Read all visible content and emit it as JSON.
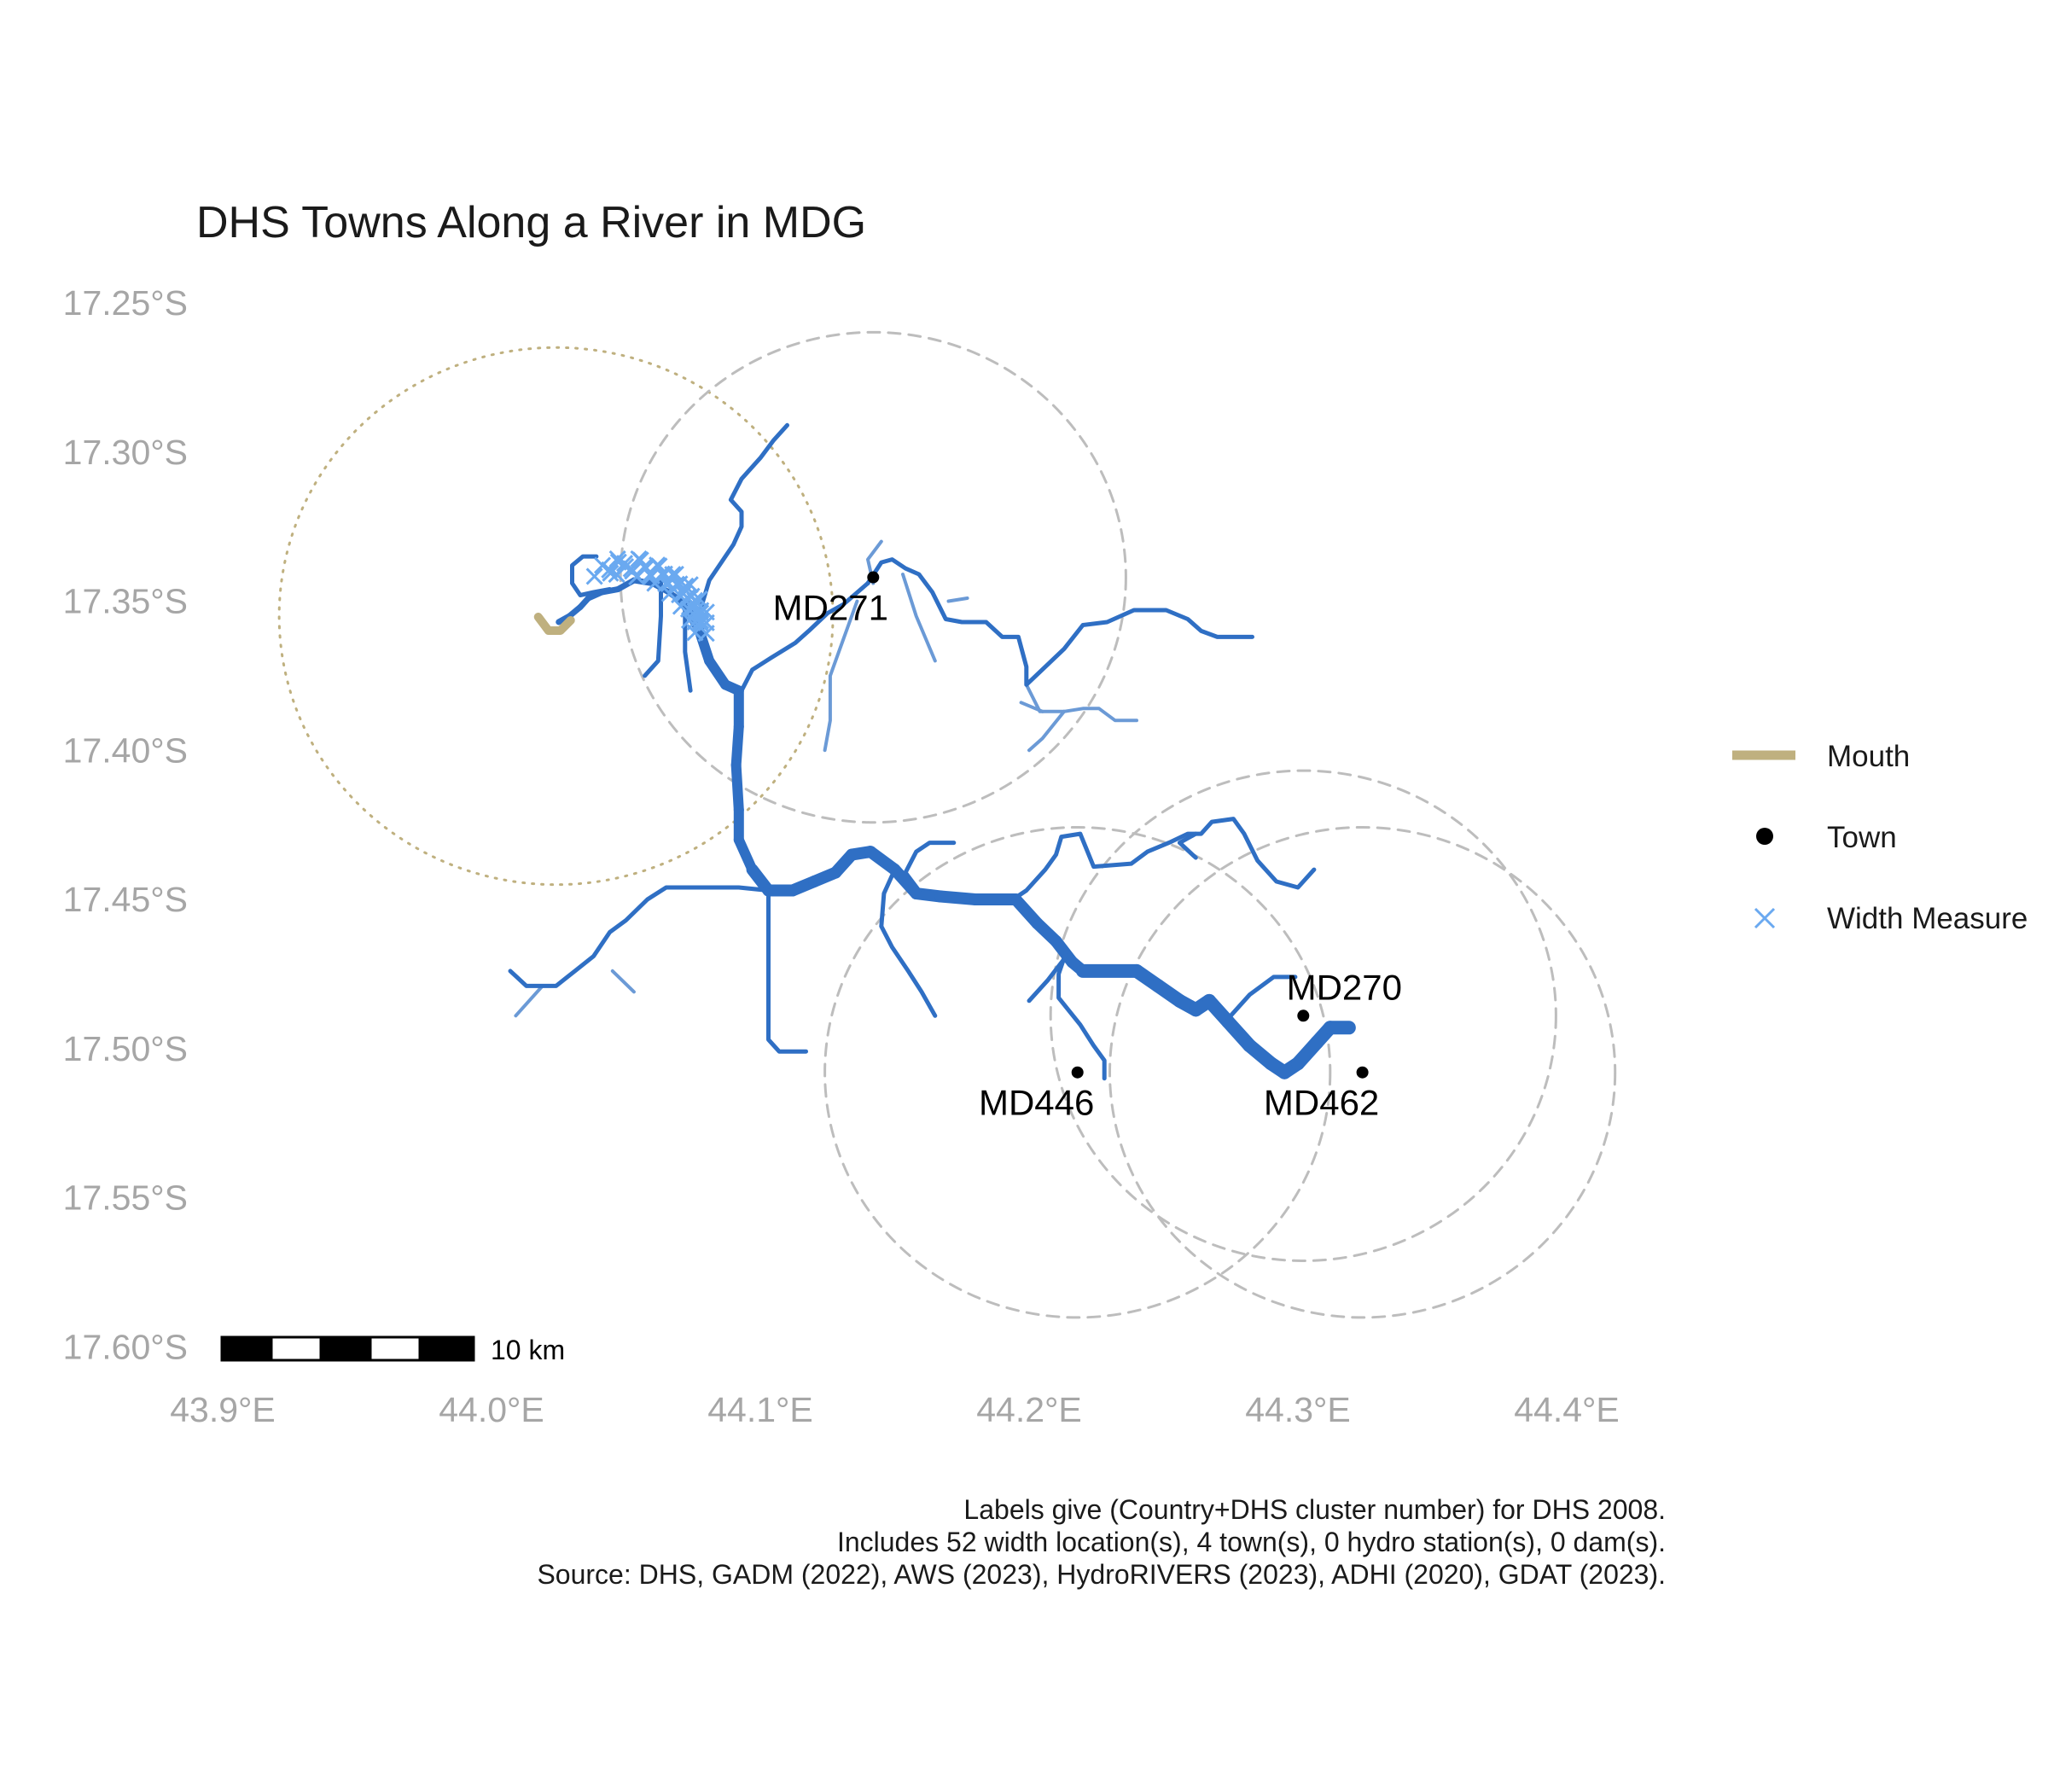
{
  "title": "DHS Towns Along a River in MDG",
  "axes": {
    "lat_labels": [
      "17.25°S",
      "17.30°S",
      "17.35°S",
      "17.40°S",
      "17.45°S",
      "17.50°S",
      "17.55°S",
      "17.60°S"
    ],
    "lon_labels": [
      "43.9°E",
      "44.0°E",
      "44.1°E",
      "44.2°E",
      "44.3°E",
      "44.4°E"
    ],
    "lat_ticks": [
      -17.25,
      -17.3,
      -17.35,
      -17.4,
      -17.45,
      -17.5,
      -17.55,
      -17.6
    ],
    "lon_ticks": [
      43.9,
      44.0,
      44.1,
      44.2,
      44.3,
      44.4
    ]
  },
  "towns": [
    {
      "label": "MD271",
      "lon": 44.142,
      "lat": -17.342
    },
    {
      "label": "MD270",
      "lon": 44.302,
      "lat": -17.489
    },
    {
      "label": "MD446",
      "lon": 44.218,
      "lat": -17.508
    },
    {
      "label": "MD462",
      "lon": 44.324,
      "lat": -17.508
    }
  ],
  "mouth": {
    "lon": 44.025,
    "lat": -17.357
  },
  "buffers": [
    {
      "type": "mouth",
      "lon": 44.024,
      "lat": -17.355,
      "radius_deg": 0.103
    },
    {
      "type": "town",
      "lon": 44.142,
      "lat": -17.342,
      "radius_deg": 0.094
    },
    {
      "type": "town",
      "lon": 44.302,
      "lat": -17.489,
      "radius_deg": 0.094
    },
    {
      "type": "town",
      "lon": 44.218,
      "lat": -17.508,
      "radius_deg": 0.094
    },
    {
      "type": "town",
      "lon": 44.324,
      "lat": -17.508,
      "radius_deg": 0.094
    }
  ],
  "legend": {
    "items": [
      {
        "label": "Mouth"
      },
      {
        "label": "Town"
      },
      {
        "label": "Width Measure"
      }
    ]
  },
  "scalebar": {
    "label": "10 km"
  },
  "caption": [
    "Labels give (Country+DHS cluster number) for DHS 2008.",
    "Includes 52 width location(s), 4 town(s), 0 hydro station(s), 0 dam(s).",
    "Source: DHS, GADM (2022), AWS (2023), HydroRIVERS (2023), ADHI (2020), GDAT (2023)."
  ],
  "colors": {
    "river": "#2f6fc4",
    "tributary_light": "#6b9ad6",
    "mouth": "#bfb07f",
    "width_marker": "#6aa9f0",
    "town": "#000000",
    "buffer": "#bdbdbd",
    "axis_text": "#a6a6a6"
  },
  "rivers": [
    {
      "w": 1,
      "pts": [
        [
          44.025,
          -17.357
        ],
        [
          44.029,
          -17.355
        ],
        [
          44.033,
          -17.352
        ],
        [
          44.036,
          -17.349
        ],
        [
          44.041,
          -17.347
        ],
        [
          44.047,
          -17.346
        ],
        [
          44.053,
          -17.343
        ],
        [
          44.06,
          -17.344
        ],
        [
          44.066,
          -17.347
        ],
        [
          44.072,
          -17.351
        ],
        [
          44.077,
          -17.359
        ],
        [
          44.081,
          -17.37
        ],
        [
          44.087,
          -17.378
        ],
        [
          44.092,
          -17.38
        ],
        [
          44.092,
          -17.392
        ],
        [
          44.091,
          -17.405
        ],
        [
          44.092,
          -17.42
        ],
        [
          44.092,
          -17.43
        ],
        [
          44.097,
          -17.44
        ],
        [
          44.103,
          -17.447
        ],
        [
          44.112,
          -17.447
        ],
        [
          44.12,
          -17.444
        ],
        [
          44.128,
          -17.441
        ],
        [
          44.134,
          -17.435
        ],
        [
          44.141,
          -17.434
        ],
        [
          44.15,
          -17.44
        ],
        [
          44.158,
          -17.448
        ],
        [
          44.167,
          -17.449
        ],
        [
          44.18,
          -17.45
        ],
        [
          44.195,
          -17.45
        ],
        [
          44.203,
          -17.458
        ],
        [
          44.21,
          -17.464
        ],
        [
          44.216,
          -17.471
        ],
        [
          44.22,
          -17.474
        ],
        [
          44.24,
          -17.474
        ],
        [
          44.248,
          -17.479
        ],
        [
          44.256,
          -17.484
        ],
        [
          44.262,
          -17.487
        ],
        [
          44.267,
          -17.484
        ],
        [
          44.274,
          -17.491
        ],
        [
          44.282,
          -17.499
        ],
        [
          44.29,
          -17.505
        ],
        [
          44.295,
          -17.508
        ],
        [
          44.3,
          -17.505
        ],
        [
          44.307,
          -17.498
        ],
        [
          44.312,
          -17.493
        ],
        [
          44.319,
          -17.493
        ]
      ]
    },
    {
      "w": 0,
      "pts": [
        [
          44.14,
          -17.344
        ],
        [
          44.145,
          -17.337
        ],
        [
          44.149,
          -17.336
        ],
        [
          44.154,
          -17.339
        ],
        [
          44.159,
          -17.341
        ],
        [
          44.164,
          -17.347
        ],
        [
          44.169,
          -17.356
        ],
        [
          44.175,
          -17.357
        ],
        [
          44.184,
          -17.357
        ],
        [
          44.19,
          -17.362
        ],
        [
          44.196,
          -17.362
        ],
        [
          44.199,
          -17.372
        ],
        [
          44.199,
          -17.378
        ],
        [
          44.206,
          -17.372
        ],
        [
          44.213,
          -17.366
        ],
        [
          44.22,
          -17.358
        ],
        [
          44.229,
          -17.357
        ],
        [
          44.239,
          -17.353
        ],
        [
          44.251,
          -17.353
        ],
        [
          44.259,
          -17.356
        ],
        [
          44.264,
          -17.36
        ],
        [
          44.27,
          -17.362
        ],
        [
          44.283,
          -17.362
        ]
      ]
    },
    {
      "w": 0,
      "pts": [
        [
          44.14,
          -17.344
        ],
        [
          44.131,
          -17.351
        ],
        [
          44.125,
          -17.354
        ],
        [
          44.118,
          -17.36
        ],
        [
          44.113,
          -17.364
        ],
        [
          44.104,
          -17.369
        ],
        [
          44.097,
          -17.373
        ],
        [
          44.093,
          -17.38
        ]
      ]
    },
    {
      "w": 0,
      "pts": [
        [
          44.078,
          -17.352
        ],
        [
          44.081,
          -17.343
        ],
        [
          44.09,
          -17.331
        ],
        [
          44.093,
          -17.325
        ],
        [
          44.093,
          -17.32
        ],
        [
          44.089,
          -17.316
        ],
        [
          44.093,
          -17.309
        ],
        [
          44.1,
          -17.302
        ],
        [
          44.105,
          -17.296
        ],
        [
          44.11,
          -17.291
        ]
      ]
    },
    {
      "w": 0,
      "pts": [
        [
          44.044,
          -17.346
        ],
        [
          44.038,
          -17.347
        ],
        [
          44.033,
          -17.348
        ],
        [
          44.03,
          -17.344
        ],
        [
          44.03,
          -17.338
        ],
        [
          44.034,
          -17.335
        ],
        [
          44.039,
          -17.335
        ]
      ]
    },
    {
      "w": 0,
      "pts": [
        [
          44.063,
          -17.342
        ],
        [
          44.063,
          -17.355
        ],
        [
          44.062,
          -17.37
        ],
        [
          44.057,
          -17.375
        ]
      ]
    },
    {
      "w": 0,
      "pts": [
        [
          44.072,
          -17.352
        ],
        [
          44.072,
          -17.367
        ],
        [
          44.074,
          -17.38
        ]
      ]
    },
    {
      "w": 0,
      "pts": [
        [
          44.103,
          -17.447
        ],
        [
          44.092,
          -17.446
        ],
        [
          44.08,
          -17.446
        ],
        [
          44.071,
          -17.446
        ],
        [
          44.065,
          -17.446
        ],
        [
          44.058,
          -17.45
        ],
        [
          44.05,
          -17.457
        ],
        [
          44.044,
          -17.461
        ],
        [
          44.038,
          -17.469
        ],
        [
          44.031,
          -17.474
        ],
        [
          44.024,
          -17.479
        ],
        [
          44.013,
          -17.479
        ],
        [
          44.007,
          -17.474
        ]
      ]
    },
    {
      "w": 0,
      "pts": [
        [
          44.103,
          -17.447
        ],
        [
          44.103,
          -17.47
        ],
        [
          44.103,
          -17.49
        ],
        [
          44.103,
          -17.497
        ],
        [
          44.107,
          -17.501
        ],
        [
          44.117,
          -17.501
        ]
      ]
    },
    {
      "w": 0,
      "pts": [
        [
          44.159,
          -17.447
        ],
        [
          44.154,
          -17.441
        ],
        [
          44.158,
          -17.434
        ],
        [
          44.163,
          -17.431
        ],
        [
          44.172,
          -17.431
        ]
      ]
    },
    {
      "w": 0,
      "pts": [
        [
          44.15,
          -17.44
        ],
        [
          44.146,
          -17.448
        ],
        [
          44.145,
          -17.459
        ],
        [
          44.149,
          -17.466
        ],
        [
          44.155,
          -17.474
        ],
        [
          44.16,
          -17.481
        ],
        [
          44.165,
          -17.489
        ]
      ]
    },
    {
      "w": 0,
      "pts": [
        [
          44.194,
          -17.45
        ],
        [
          44.199,
          -17.447
        ],
        [
          44.206,
          -17.44
        ],
        [
          44.21,
          -17.435
        ],
        [
          44.212,
          -17.429
        ],
        [
          44.219,
          -17.428
        ],
        [
          44.224,
          -17.439
        ],
        [
          44.238,
          -17.438
        ],
        [
          44.244,
          -17.434
        ],
        [
          44.252,
          -17.431
        ],
        [
          44.259,
          -17.428
        ],
        [
          44.264,
          -17.428
        ],
        [
          44.268,
          -17.424
        ],
        [
          44.276,
          -17.423
        ],
        [
          44.28,
          -17.428
        ],
        [
          44.285,
          -17.437
        ],
        [
          44.292,
          -17.444
        ],
        [
          44.3,
          -17.446
        ],
        [
          44.306,
          -17.44
        ]
      ]
    },
    {
      "w": 0,
      "pts": [
        [
          44.214,
          -17.467
        ],
        [
          44.211,
          -17.475
        ],
        [
          44.211,
          -17.483
        ],
        [
          44.219,
          -17.492
        ],
        [
          44.224,
          -17.499
        ],
        [
          44.228,
          -17.504
        ],
        [
          44.228,
          -17.51
        ]
      ]
    },
    {
      "w": 0,
      "pts": [
        [
          44.213,
          -17.47
        ],
        [
          44.207,
          -17.477
        ],
        [
          44.2,
          -17.484
        ]
      ]
    },
    {
      "w": 0,
      "pts": [
        [
          44.274,
          -17.49
        ],
        [
          44.282,
          -17.482
        ],
        [
          44.291,
          -17.476
        ],
        [
          44.299,
          -17.476
        ]
      ]
    },
    {
      "w": 0,
      "pts": [
        [
          44.262,
          -17.436
        ],
        [
          44.256,
          -17.431
        ],
        [
          44.262,
          -17.428
        ]
      ]
    }
  ],
  "rivers_thin": [
    {
      "pts": [
        [
          44.153,
          -17.341
        ],
        [
          44.158,
          -17.355
        ],
        [
          44.165,
          -17.37
        ]
      ]
    },
    {
      "pts": [
        [
          44.136,
          -17.35
        ],
        [
          44.13,
          -17.365
        ],
        [
          44.126,
          -17.375
        ],
        [
          44.126,
          -17.39
        ],
        [
          44.124,
          -17.4
        ]
      ]
    },
    {
      "pts": [
        [
          44.142,
          -17.344
        ],
        [
          44.14,
          -17.336
        ],
        [
          44.145,
          -17.33
        ]
      ]
    },
    {
      "pts": [
        [
          44.199,
          -17.378
        ],
        [
          44.204,
          -17.387
        ],
        [
          44.213,
          -17.387
        ],
        [
          44.22,
          -17.386
        ],
        [
          44.226,
          -17.386
        ],
        [
          44.232,
          -17.39
        ],
        [
          44.24,
          -17.39
        ]
      ]
    },
    {
      "pts": [
        [
          44.213,
          -17.387
        ],
        [
          44.205,
          -17.396
        ],
        [
          44.2,
          -17.4
        ]
      ]
    },
    {
      "pts": [
        [
          44.205,
          -17.387
        ],
        [
          44.197,
          -17.384
        ]
      ]
    },
    {
      "pts": [
        [
          44.17,
          -17.35
        ],
        [
          44.177,
          -17.349
        ]
      ]
    },
    {
      "pts": [
        [
          44.019,
          -17.479
        ],
        [
          44.009,
          -17.489
        ]
      ]
    },
    {
      "pts": [
        [
          44.045,
          -17.474
        ],
        [
          44.053,
          -17.481
        ]
      ]
    }
  ]
}
